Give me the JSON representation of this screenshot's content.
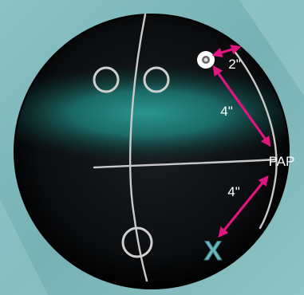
{
  "diagram": {
    "labels": {
      "pap": "PAP",
      "dist_pin_pap": "4\"",
      "dist_pap_x": "4\"",
      "dist_pin_offset": "2\""
    },
    "marker_x": "X",
    "colors": {
      "background": "#7fb8bb",
      "ball_dark": "#050607",
      "ball_teal": "#1e7d78",
      "arrow": "#e0157f",
      "marker_x": "#6fb4bd",
      "lines": "#c9c9c9",
      "text": "#ffffff"
    }
  }
}
